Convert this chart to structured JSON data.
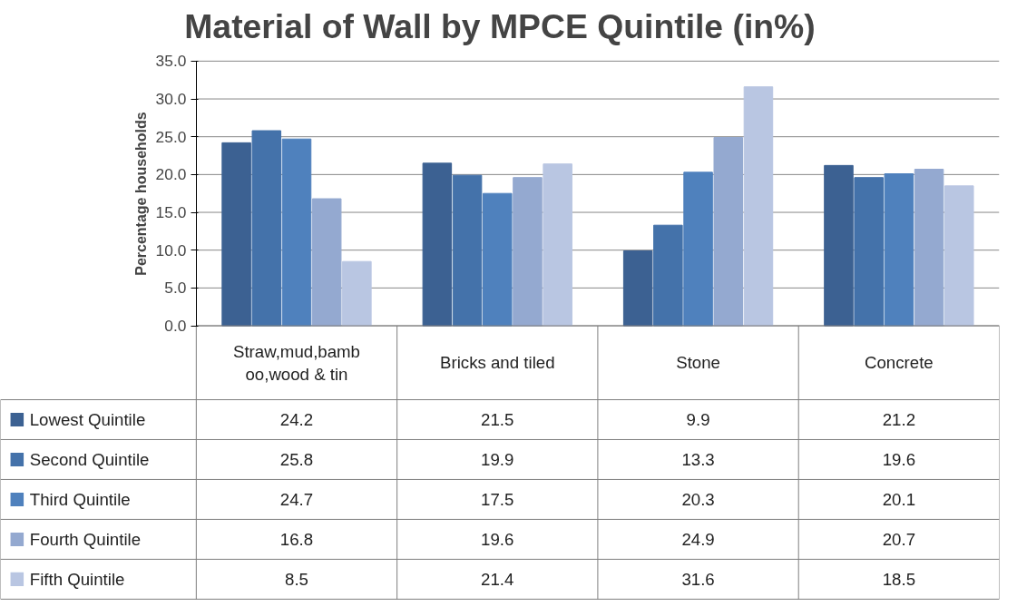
{
  "chart_data": {
    "type": "bar",
    "title": "Material of Wall by MPCE Quintile (in%)",
    "ylabel": "Percentage households",
    "categories": [
      "Straw,mud,bamboo,wood & tin",
      "Bricks and tiled",
      "Stone",
      "Concrete"
    ],
    "series": [
      {
        "name": "Lowest Quintile",
        "color": "#3c6192",
        "values": [
          24.2,
          21.5,
          9.9,
          21.2
        ]
      },
      {
        "name": "Second Quintile",
        "color": "#4472aa",
        "values": [
          25.8,
          19.9,
          13.3,
          19.6
        ]
      },
      {
        "name": "Third Quintile",
        "color": "#4f81bd",
        "values": [
          24.7,
          17.5,
          20.3,
          20.1
        ]
      },
      {
        "name": "Fourth Quintile",
        "color": "#94a9d0",
        "values": [
          16.8,
          19.6,
          24.9,
          20.7
        ]
      },
      {
        "name": "Fifth Quintile",
        "color": "#b9c6e2",
        "values": [
          8.5,
          21.4,
          31.6,
          18.5
        ]
      }
    ],
    "ylim": [
      0,
      35
    ],
    "yticks": [
      {
        "value": 0,
        "label": "0.0"
      },
      {
        "value": 5,
        "label": "5.0"
      },
      {
        "value": 10,
        "label": "10.0"
      },
      {
        "value": 15,
        "label": "15.0"
      },
      {
        "value": 20,
        "label": "20.0"
      },
      {
        "value": 25,
        "label": "25.0"
      },
      {
        "value": 30,
        "label": "30.0"
      },
      {
        "value": 35,
        "label": "35.0"
      }
    ],
    "grid": "y",
    "legend": "bottom",
    "data_labels": true
  }
}
